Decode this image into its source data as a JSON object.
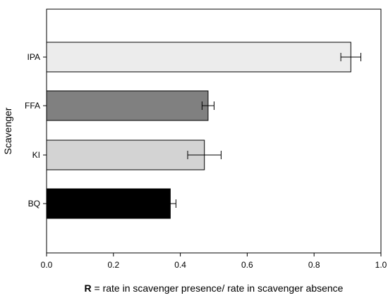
{
  "chart_data": {
    "type": "bar",
    "orientation": "horizontal",
    "categories": [
      "IPA",
      "FFA",
      "KI",
      "BQ"
    ],
    "values": [
      0.91,
      0.483,
      0.472,
      0.37
    ],
    "errors": [
      0.03,
      0.018,
      0.05,
      0.017
    ],
    "colors": [
      "#ececec",
      "#808080",
      "#d3d3d3",
      "#000000"
    ],
    "xlim": [
      0.0,
      1.0
    ],
    "x_ticks": [
      "0.0",
      "0.2",
      "0.4",
      "0.6",
      "0.8",
      "1.0"
    ],
    "xlabel_bold": "R",
    "xlabel_rest": " = rate in scavenger presence/ rate in scavenger absence",
    "ylabel": "Scavenger",
    "grid": false
  }
}
